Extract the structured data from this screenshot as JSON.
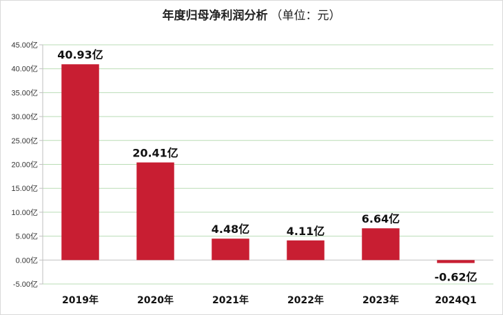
{
  "chart_data": {
    "type": "bar",
    "title": "年度归母净利润分析",
    "subtitle": "（单位：元）",
    "categories": [
      "2019年",
      "2020年",
      "2021年",
      "2022年",
      "2023年",
      "2024Q1"
    ],
    "values": [
      40.93,
      20.41,
      4.48,
      4.11,
      6.64,
      -0.62
    ],
    "data_labels": [
      "40.93亿",
      "20.41亿",
      "4.48亿",
      "4.11亿",
      "6.64亿",
      "-0.62亿"
    ],
    "y_ticks": [
      45,
      40,
      35,
      30,
      25,
      20,
      15,
      10,
      5,
      0,
      -5
    ],
    "y_tick_labels": [
      "45.00亿",
      "40.00亿",
      "35.00亿",
      "30.00亿",
      "25.00亿",
      "20.00亿",
      "15.00亿",
      "10.00亿",
      "5.00亿",
      "0.00亿",
      "-5.00亿"
    ],
    "ylim": [
      -5,
      45
    ],
    "xlabel": "",
    "ylabel": "",
    "grid": true,
    "colors": {
      "bar": "#c81e32",
      "grid": "#b9dcb4",
      "axis": "#bfbfbf"
    }
  }
}
